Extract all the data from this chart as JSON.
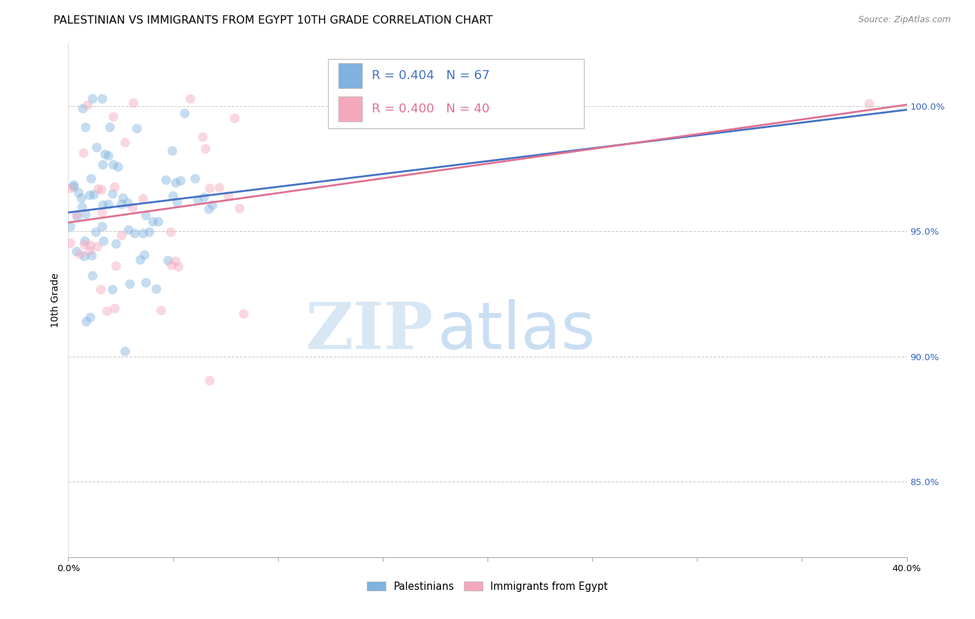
{
  "title": "PALESTINIAN VS IMMIGRANTS FROM EGYPT 10TH GRADE CORRELATION CHART",
  "source": "Source: ZipAtlas.com",
  "ylabel": "10th Grade",
  "ylabel_right_ticks": [
    "100.0%",
    "95.0%",
    "90.0%",
    "85.0%"
  ],
  "ylabel_right_vals": [
    1.0,
    0.95,
    0.9,
    0.85
  ],
  "watermark_zip": "ZIP",
  "watermark_atlas": "atlas",
  "legend_blue_label": "Palestinians",
  "legend_pink_label": "Immigrants from Egypt",
  "r_blue": 0.404,
  "n_blue": 67,
  "r_pink": 0.4,
  "n_pink": 40,
  "blue_color": "#7fb3e0",
  "pink_color": "#f5a8bc",
  "trend_blue": "#4472c4",
  "trend_pink": "#e07090",
  "xmin": 0.0,
  "xmax": 0.4,
  "ymin": 0.82,
  "ymax": 1.025,
  "grid_color": "#cccccc",
  "background_color": "#ffffff",
  "title_fontsize": 11.5,
  "source_fontsize": 9,
  "axis_label_fontsize": 10,
  "tick_fontsize": 9.5,
  "marker_size": 100,
  "marker_alpha": 0.45,
  "trend_linewidth": 2.0
}
